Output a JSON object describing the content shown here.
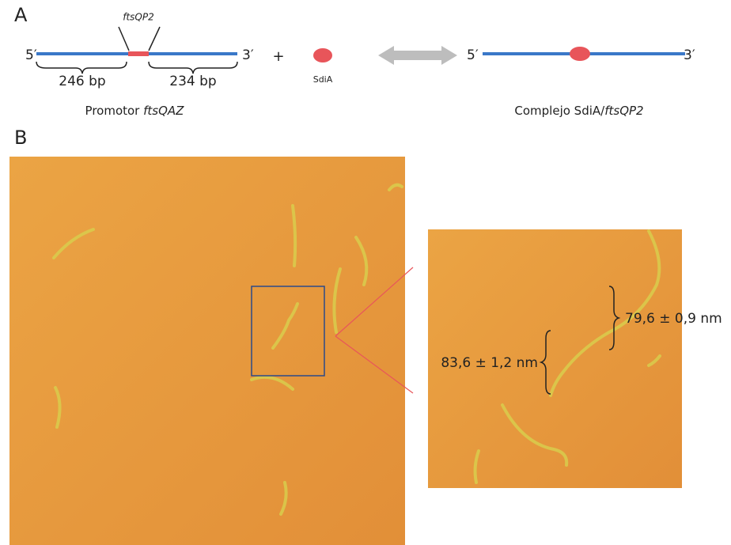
{
  "panel_a": {
    "label": "A",
    "fragment_label": "ftsQP2",
    "left_end": "5′",
    "right_end": "3′",
    "left_length": "246 bp",
    "right_length": "234 bp",
    "plus": "+",
    "protein": "SdiA",
    "promoter_caption": {
      "text": "Promotor ",
      "italic": "ftsQAZ"
    },
    "complex_left_end": "5′",
    "complex_right_end": "3′",
    "complex_caption": {
      "text": "Complejo SdiA/",
      "italic": "ftsQP2"
    }
  },
  "panel_b": {
    "label": "B",
    "measurements": [
      "79,6 ± 0,9 nm",
      "83,6 ± 1,2 nm"
    ]
  }
}
